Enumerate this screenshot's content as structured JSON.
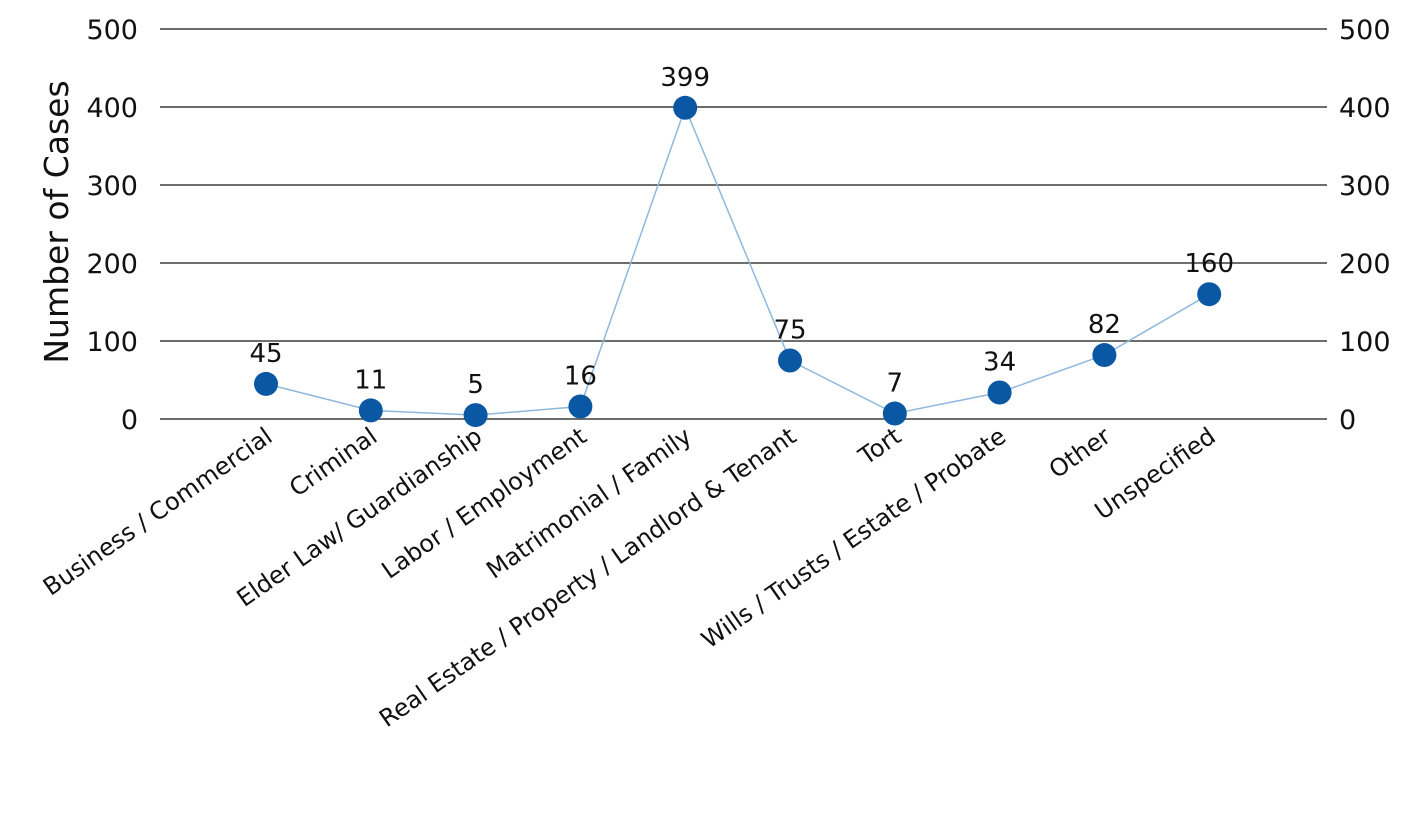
{
  "chart_data": {
    "type": "line",
    "ylabel": "Number of Cases",
    "ylim": [
      0,
      500
    ],
    "yticks": [
      0,
      100,
      200,
      300,
      400,
      500
    ],
    "secondary_y_axis": true,
    "grid": true,
    "legend": "none",
    "categories": [
      "Business / Commercial",
      "Criminal",
      "Elder Law/ Guardianship",
      "Labor / Employment",
      "Matrimonial / Family",
      "Real Estate / Property / Landlord & Tenant",
      "Tort",
      "Wills / Trusts / Estate / Probate",
      "Other",
      "Unspecified"
    ],
    "values": [
      45,
      11,
      5,
      16,
      399,
      75,
      7,
      34,
      82,
      160
    ],
    "data_labels": true,
    "colors": {
      "marker": "#0a57a3",
      "line": "#8fb8dd",
      "grid": "#6e6e6e"
    }
  }
}
